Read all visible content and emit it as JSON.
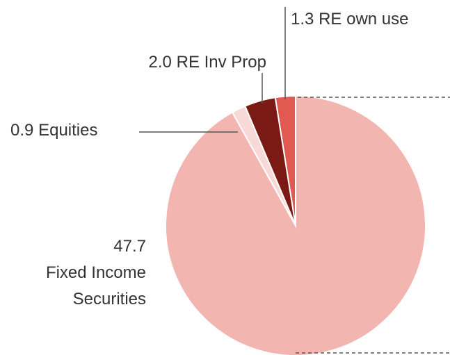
{
  "chart_data": {
    "type": "pie",
    "categories": [
      "Fixed Income Securities",
      "Equities",
      "RE Inv Prop",
      "RE own use"
    ],
    "values": [
      47.7,
      0.9,
      2.0,
      1.3
    ],
    "value_labels": [
      "47.7",
      "0.9",
      "2.0",
      "1.3"
    ],
    "colors": [
      "#f2b5b0",
      "#f9d9d7",
      "#7b1a14",
      "#e05a52"
    ]
  }
}
